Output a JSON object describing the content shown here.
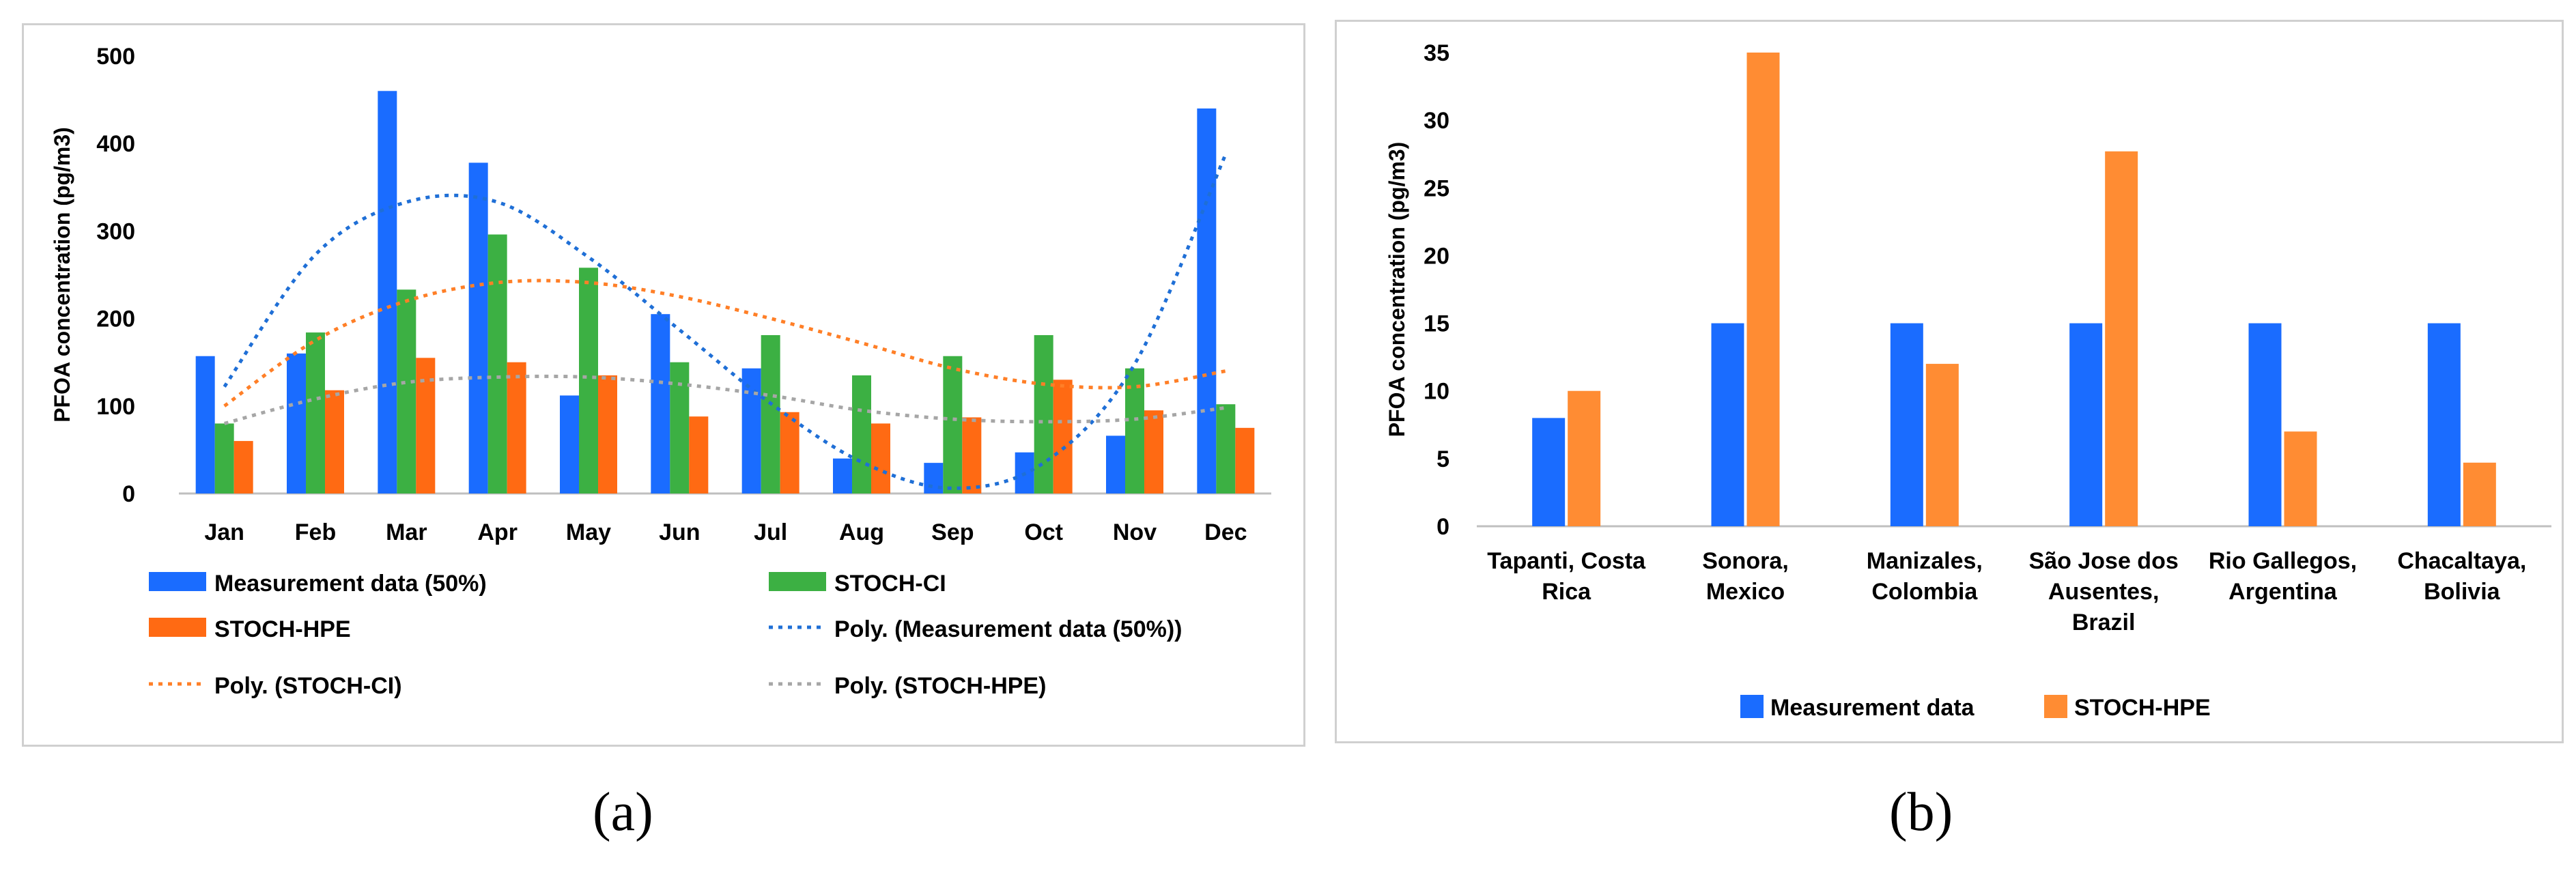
{
  "colors": {
    "measurement": "#1a6cff",
    "stoch_ci": "#3cb043",
    "stoch_hpe": "#ff6a13",
    "hpe_b": "#ff8c33",
    "poly_measurement": "#1f6fd6",
    "poly_ci": "#ff7f27",
    "poly_hpe": "#a6a6a6"
  },
  "chart_data": [
    {
      "type": "bar",
      "panel_label": "(a)",
      "title": "",
      "xlabel": "",
      "ylabel": "PFOA concentration (pg/m3)",
      "ylim": [
        0,
        500
      ],
      "yticks": [
        0,
        100,
        200,
        300,
        400,
        500
      ],
      "categories": [
        "Jan",
        "Feb",
        "Mar",
        "Apr",
        "May",
        "Jun",
        "Jul",
        "Aug",
        "Sep",
        "Oct",
        "Nov",
        "Dec"
      ],
      "series": [
        {
          "name": "Measurement data (50%)",
          "values": [
            157,
            160,
            460,
            378,
            112,
            205,
            143,
            40,
            35,
            47,
            66,
            440
          ]
        },
        {
          "name": "STOCH-CI",
          "values": [
            80,
            184,
            233,
            296,
            258,
            150,
            181,
            135,
            157,
            181,
            143,
            102
          ]
        },
        {
          "name": "STOCH-HPE",
          "values": [
            60,
            118,
            155,
            150,
            135,
            88,
            93,
            80,
            87,
            130,
            95,
            75
          ]
        }
      ],
      "trendlines": [
        {
          "name": "Poly. (Measurement data (50%))",
          "values": [
            122,
            273,
            333,
            333,
            270,
            187,
            103,
            36,
            6,
            35,
            148,
            388
          ]
        },
        {
          "name": "Poly. (STOCH-CI)",
          "values": [
            100,
            175,
            220,
            241,
            241,
            225,
            200,
            172,
            143,
            125,
            122,
            140
          ]
        },
        {
          "name": "Poly. (STOCH-HPE)",
          "values": [
            80,
            108,
            127,
            133,
            133,
            125,
            112,
            95,
            85,
            82,
            85,
            98
          ]
        }
      ],
      "legend": [
        "Measurement data (50%)",
        "STOCH-CI",
        "STOCH-HPE",
        "Poly. (Measurement data (50%))",
        "Poly. (STOCH-CI)",
        "Poly. (STOCH-HPE)"
      ]
    },
    {
      "type": "bar",
      "panel_label": "(b)",
      "title": "",
      "xlabel": "",
      "ylabel": "PFOA concentration (pg/m3)",
      "ylim": [
        0,
        35
      ],
      "yticks": [
        0,
        5,
        10,
        15,
        20,
        25,
        30,
        35
      ],
      "categories": [
        [
          "Tapanti, Costa",
          "Rica"
        ],
        [
          "Sonora,",
          "Mexico"
        ],
        [
          "Manizales,",
          "Colombia"
        ],
        [
          "São Jose dos",
          "Ausentes,",
          "Brazil"
        ],
        [
          "Rio Gallegos,",
          "Argentina"
        ],
        [
          "Chacaltaya,",
          "Bolivia"
        ]
      ],
      "series": [
        {
          "name": "Measurement data",
          "values": [
            8,
            15,
            15,
            15,
            15,
            15
          ]
        },
        {
          "name": "STOCH-HPE",
          "values": [
            10,
            35,
            12,
            27.7,
            7,
            4.7
          ]
        }
      ],
      "legend": [
        "Measurement data",
        "STOCH-HPE"
      ]
    }
  ]
}
